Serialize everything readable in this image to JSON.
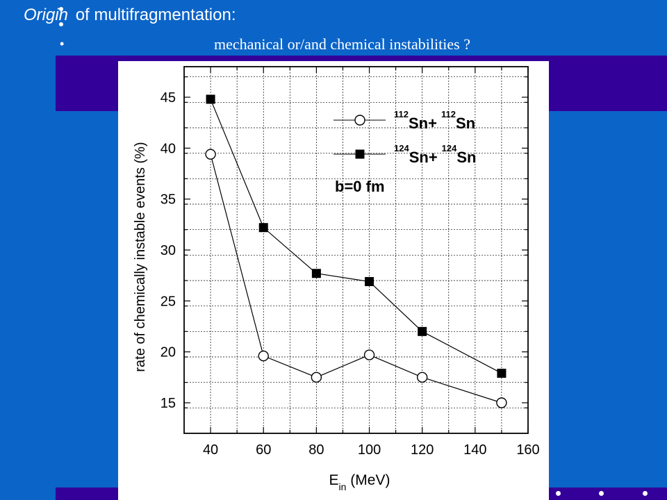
{
  "slide": {
    "title_italic": "Origin",
    "title_rest": "of multifragmentation:",
    "bullet": "•",
    "subtitle": "mechanical  or/and chemical instabilities ?"
  },
  "chart_data": {
    "type": "line",
    "title": "",
    "xlabel_main": "E",
    "xlabel_sub": "in",
    "xlabel_unit": "(MeV)",
    "ylabel": "rate of chemically instable events (%)",
    "xlim": [
      30,
      160
    ],
    "ylim": [
      12,
      48
    ],
    "x_major_ticks": [
      40,
      60,
      80,
      100,
      120,
      140,
      160
    ],
    "x_minor_step": 10,
    "y_major_ticks": [
      15,
      20,
      25,
      30,
      35,
      40,
      45
    ],
    "y_minor_step": 2.5,
    "grid": true,
    "legend_position": "top-right",
    "annotation": "b=0 fm",
    "series": [
      {
        "name": "112Sn+112Sn",
        "legend_parts": [
          "112",
          "Sn+",
          "112",
          "Sn"
        ],
        "marker": "open-circle",
        "x": [
          40,
          60,
          80,
          100,
          120,
          150
        ],
        "y": [
          39.4,
          19.6,
          17.5,
          19.7,
          17.5,
          15.0
        ]
      },
      {
        "name": "124Sn+124Sn",
        "legend_parts": [
          "124",
          "Sn+",
          "124",
          "Sn"
        ],
        "marker": "filled-square",
        "x": [
          40,
          60,
          80,
          100,
          120,
          150
        ],
        "y": [
          44.8,
          32.2,
          27.7,
          26.9,
          22.0,
          17.9
        ]
      }
    ]
  }
}
